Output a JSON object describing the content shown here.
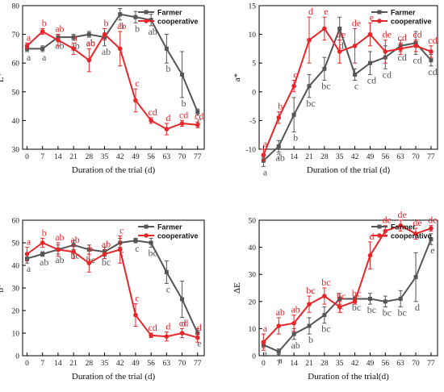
{
  "colors": {
    "farmer": "#555555",
    "cooperative": "#e8262a"
  },
  "chart_data": [
    {
      "type": "line",
      "title": "",
      "xlabel": "Duration of the trial (d)",
      "ylabel": "L*",
      "x": [
        0,
        7,
        14,
        21,
        28,
        35,
        42,
        49,
        56,
        63,
        70,
        77
      ],
      "ylim": [
        30,
        80
      ],
      "yticks": [
        30,
        40,
        50,
        60,
        70,
        80
      ],
      "legend": "top-right",
      "series": [
        {
          "name": "Farmer",
          "values": [
            65,
            65,
            69,
            69,
            70,
            69,
            77,
            76,
            75,
            65,
            56,
            43
          ],
          "errors": [
            1,
            1,
            1,
            1,
            1,
            3,
            2,
            2,
            2,
            5,
            8,
            1
          ],
          "labels": [
            "a",
            "a",
            "ab",
            "ab",
            "ab",
            "ab",
            "b",
            "b",
            "ab",
            "b",
            "b",
            "c"
          ]
        },
        {
          "name": "cooperative",
          "values": [
            66,
            71,
            68,
            65,
            61,
            70,
            65,
            47,
            40,
            37,
            39,
            38.5
          ],
          "errors": [
            1,
            1,
            2,
            2,
            4,
            2,
            6,
            4,
            1,
            2,
            1,
            1
          ],
          "labels": [
            "a",
            "b",
            "ab",
            "a",
            "ab",
            "b",
            "ab",
            "c",
            "cd",
            "d",
            "cd",
            "cd"
          ]
        }
      ]
    },
    {
      "type": "line",
      "title": "",
      "xlabel": "Duration of the trial (d)",
      "ylabel": "a*",
      "x": [
        0,
        7,
        14,
        21,
        28,
        35,
        42,
        49,
        56,
        63,
        70,
        77
      ],
      "ylim": [
        -10,
        15
      ],
      "yticks": [
        -10,
        -5,
        0,
        5,
        10,
        15
      ],
      "legend": "top-right",
      "series": [
        {
          "name": "Farmer",
          "values": [
            -12,
            -9.5,
            -4,
            1,
            4,
            11,
            3,
            5,
            6,
            8,
            8.5,
            5.5
          ],
          "errors": [
            1,
            1,
            3,
            2,
            2,
            2,
            1,
            2,
            2,
            1,
            2,
            1
          ],
          "labels": [
            "a",
            "ab",
            "b",
            "bc",
            "bc",
            "d",
            "c",
            "cd",
            "cd",
            "cd",
            "cd",
            "cd"
          ]
        },
        {
          "name": "cooperative",
          "values": [
            -11,
            -4.5,
            1,
            9,
            11,
            7,
            8,
            10,
            7,
            7.5,
            8,
            7
          ],
          "errors": [
            1,
            1,
            1,
            4,
            2,
            2,
            3,
            2,
            2,
            1,
            1,
            1
          ],
          "labels": [
            "a",
            "b",
            "c",
            "d",
            "e",
            "de",
            "de",
            "e",
            "de",
            "cd",
            "cd",
            "cd"
          ]
        }
      ]
    },
    {
      "type": "line",
      "title": "",
      "xlabel": "Duration of the trial (d)",
      "ylabel": "b*",
      "x": [
        0,
        7,
        14,
        21,
        28,
        35,
        42,
        49,
        56,
        63,
        70,
        77
      ],
      "ylim": [
        0,
        60
      ],
      "yticks": [
        0,
        10,
        20,
        30,
        40,
        50,
        60
      ],
      "legend": "top-right",
      "series": [
        {
          "name": "Farmer",
          "values": [
            43,
            45,
            47,
            49,
            47,
            46,
            50,
            51,
            50,
            37,
            25,
            10
          ],
          "errors": [
            2,
            1,
            2,
            2,
            2,
            2,
            2,
            1,
            2,
            5,
            8,
            2
          ],
          "labels": [
            "a",
            "ab",
            "ab",
            "bc",
            "bc",
            "bc",
            "c",
            "c",
            "bc",
            "c",
            "d",
            "e"
          ]
        },
        {
          "name": "cooperative",
          "values": [
            45,
            50,
            47,
            46,
            41,
            45,
            47,
            18,
            9,
            8.5,
            10,
            8
          ],
          "errors": [
            3,
            2,
            3,
            3,
            4,
            2,
            6,
            5,
            1,
            2,
            2,
            2
          ],
          "labels": [
            "a",
            "b",
            "ab",
            "ab",
            "b",
            "ab",
            "c",
            "c",
            "cd",
            "d",
            "cd",
            "d"
          ]
        }
      ]
    },
    {
      "type": "line",
      "title": "",
      "xlabel": "Duration of the trial(d)",
      "ylabel": "ΔE",
      "x": [
        0,
        7,
        14,
        21,
        28,
        35,
        42,
        49,
        56,
        63,
        70,
        77
      ],
      "ylim": [
        0,
        50
      ],
      "yticks": [
        0,
        10,
        20,
        30,
        40,
        50
      ],
      "legend": "top-right",
      "series": [
        {
          "name": "Farmer",
          "values": [
            4,
            1.5,
            8,
            11,
            15,
            21,
            21,
            21,
            20,
            21,
            29,
            43
          ],
          "errors": [
            1,
            1,
            2,
            3,
            3,
            2,
            1,
            2,
            2,
            3,
            9,
            2
          ],
          "labels": [
            "a",
            "a",
            "ab",
            "b",
            "bc",
            "c",
            "bc",
            "bc",
            "bc",
            "bc",
            "d",
            "e"
          ]
        },
        {
          "name": "cooperative",
          "values": [
            5,
            11,
            12,
            19,
            22,
            18,
            20,
            37,
            46,
            48,
            45,
            47
          ],
          "errors": [
            3,
            3,
            3,
            3,
            3,
            2,
            1,
            5,
            2,
            2,
            2,
            1
          ],
          "labels": [
            "a",
            "ab",
            "ab",
            "bc",
            "bc",
            "bc",
            "bc",
            "d",
            "de",
            "de",
            "de",
            "de"
          ]
        }
      ]
    }
  ]
}
